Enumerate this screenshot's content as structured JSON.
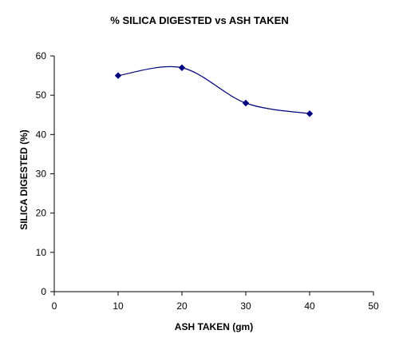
{
  "chart_data": {
    "type": "line",
    "title": "% SILICA DIGESTED vs ASH TAKEN",
    "xlabel": "ASH TAKEN (gm)",
    "ylabel": "SILICA DIGESTED (%)",
    "x": [
      10,
      20,
      30,
      40
    ],
    "series": [
      {
        "values": [
          55,
          57,
          48,
          45.3
        ]
      }
    ],
    "xlim": [
      0,
      50
    ],
    "ylim": [
      0,
      60
    ],
    "xticks": [
      0,
      10,
      20,
      30,
      40,
      50
    ],
    "yticks": [
      0,
      10,
      20,
      30,
      40,
      50,
      60
    ],
    "grid": false,
    "legend": "none",
    "smoothed": true,
    "marker": "diamond",
    "colors": {
      "line": "#00007f",
      "marker": "#00007f",
      "axis": "#000000"
    }
  }
}
